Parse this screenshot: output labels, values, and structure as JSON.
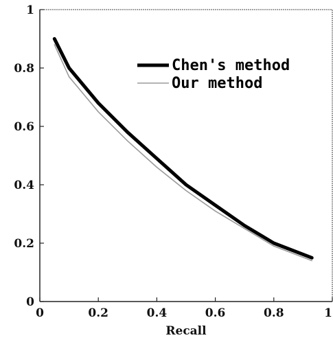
{
  "chart_data": {
    "type": "line",
    "xlabel": "Recall",
    "ylabel": "",
    "xlim": [
      0,
      1
    ],
    "ylim": [
      0,
      1
    ],
    "x_ticks": [
      0,
      0.2,
      0.4,
      0.6,
      0.8,
      1
    ],
    "y_ticks": [
      0,
      0.2,
      0.4,
      0.6,
      0.8,
      1
    ],
    "x_tick_labels": [
      "0",
      "0.2",
      "0.4",
      "0.6",
      "0.8",
      "1"
    ],
    "y_tick_labels": [
      "0",
      "0.2",
      "0.4",
      "0.6",
      "0.8",
      "1"
    ],
    "grid": false,
    "legend_position": "top-right",
    "series": [
      {
        "name": "Chen's method",
        "color": "#000000",
        "style": "thick",
        "x": [
          0.05,
          0.1,
          0.2,
          0.3,
          0.4,
          0.5,
          0.6,
          0.7,
          0.8,
          0.93
        ],
        "y": [
          0.9,
          0.8,
          0.68,
          0.58,
          0.49,
          0.4,
          0.33,
          0.26,
          0.2,
          0.15
        ]
      },
      {
        "name": "Our method",
        "color": "#9a9a9a",
        "style": "thin",
        "x": [
          0.05,
          0.1,
          0.2,
          0.3,
          0.4,
          0.5,
          0.6,
          0.7,
          0.8,
          0.93
        ],
        "y": [
          0.88,
          0.77,
          0.65,
          0.55,
          0.46,
          0.38,
          0.31,
          0.25,
          0.19,
          0.14
        ]
      }
    ]
  }
}
